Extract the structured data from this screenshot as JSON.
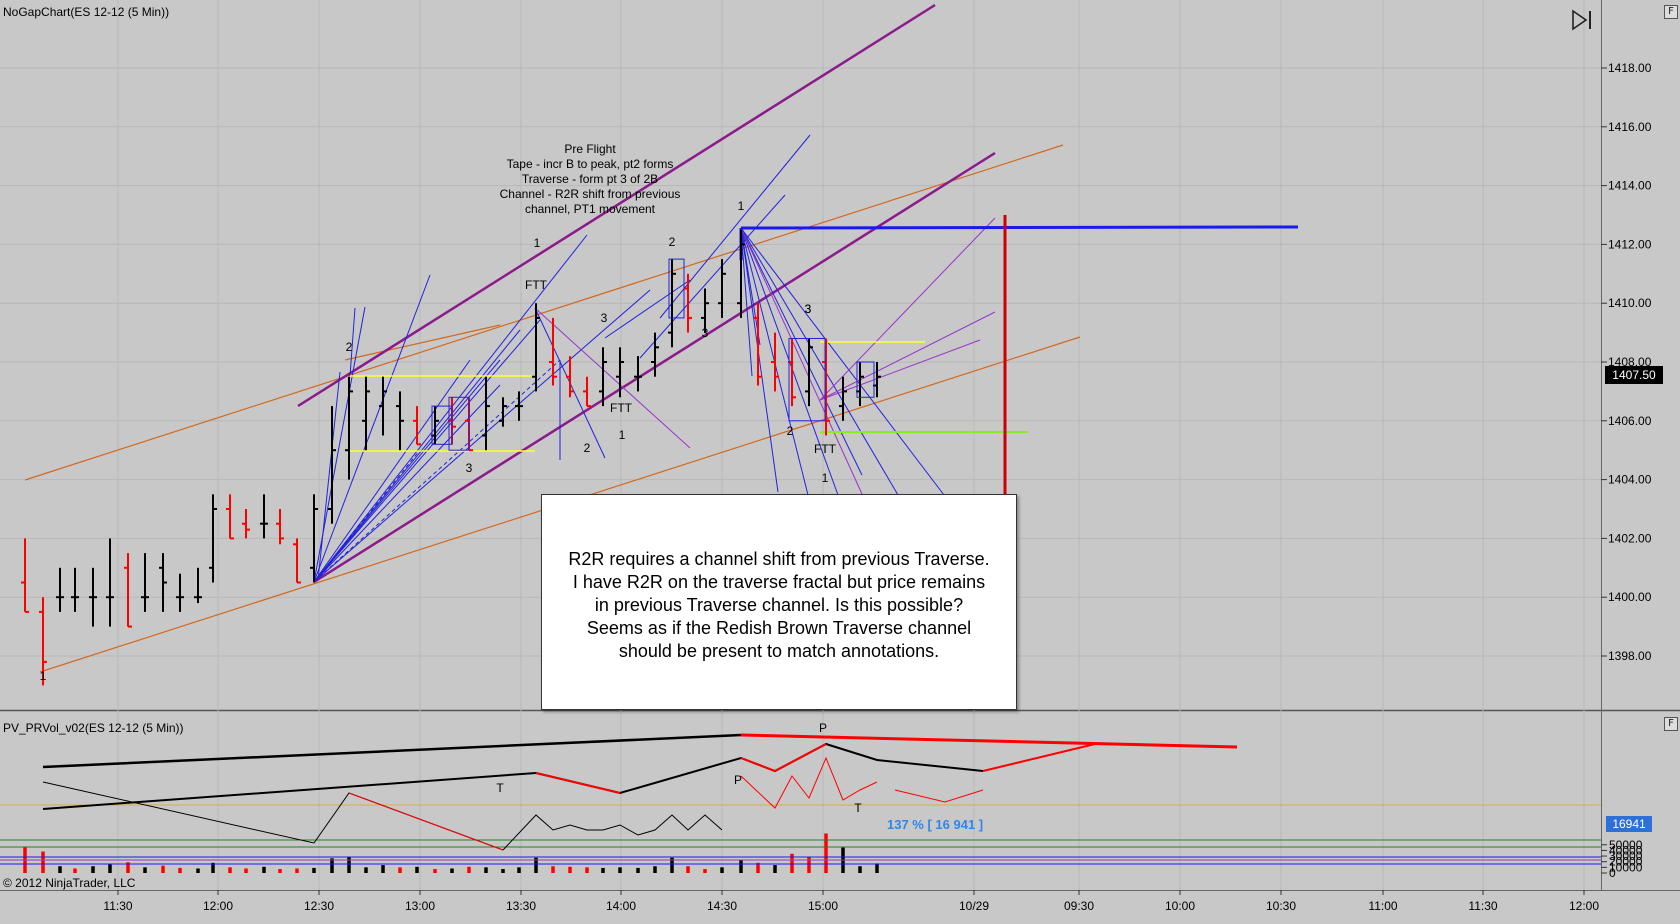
{
  "panels": {
    "price": {
      "title": "NoGapChart(ES 12-12 (5 Min))",
      "corner_btn": "F"
    },
    "volume": {
      "title": "PV_PRVol_v02(ES 12-12 (5 Min))",
      "corner_btn": "F"
    }
  },
  "copyright": "© 2012 NinjaTrader, LLC",
  "price_axis": [
    "1418.00",
    "1416.00",
    "1414.00",
    "1412.00",
    "1410.00",
    "1408.00",
    "1406.00",
    "1404.00",
    "1402.00",
    "1400.00",
    "1398.00"
  ],
  "current_price": "1407.50",
  "volume_axis": [
    "50000",
    "40000",
    "30000",
    "20000",
    "10000",
    "0"
  ],
  "current_volume": "16941",
  "volume_ratio_label": "137 % [ 16 941 ]",
  "time_axis": [
    "11:30",
    "12:00",
    "12:30",
    "13:00",
    "13:30",
    "14:00",
    "14:30",
    "15:00",
    "10/29",
    "09:30",
    "10:00",
    "10:30",
    "11:00",
    "11:30",
    "12:00"
  ],
  "annotation_header": [
    "Pre Flight",
    "Tape - incr B to peak, pt2 forms",
    "Traverse - form pt 3 of 2B",
    "Channel - R2R shift from previous",
    "channel, PT1 movement"
  ],
  "chart_marks": {
    "price_labels": [
      "1",
      "2",
      "FTT",
      "1",
      "2",
      "3",
      "3",
      "FTT",
      "1",
      "2",
      "3",
      "1",
      "2",
      "3",
      "3",
      "FTT",
      "1",
      "2"
    ],
    "volume_labels": [
      "T",
      "P",
      "P",
      "T"
    ]
  },
  "note": {
    "lines": [
      "R2R requires a channel shift from previous Traverse.",
      "I have R2R  on the traverse fractal but price remains",
      "in previous Traverse channel.  Is this possible?",
      "Seems as if the Redish Brown Traverse channel",
      "should be present to match annotations."
    ]
  },
  "colors": {
    "background": "#c8c8c8",
    "bull_bar": "#000000",
    "bear_bar": "#ff0000",
    "channel_purple": "#8b1a8b",
    "channel_orange": "#d2691e",
    "fan_blue": "#2222dd",
    "fan_violet": "#9933cc",
    "level_yellow": "#ffff33",
    "level_green": "#88ee22",
    "level_blue": "#1a1aee",
    "vertical_red": "#cc0000"
  }
}
